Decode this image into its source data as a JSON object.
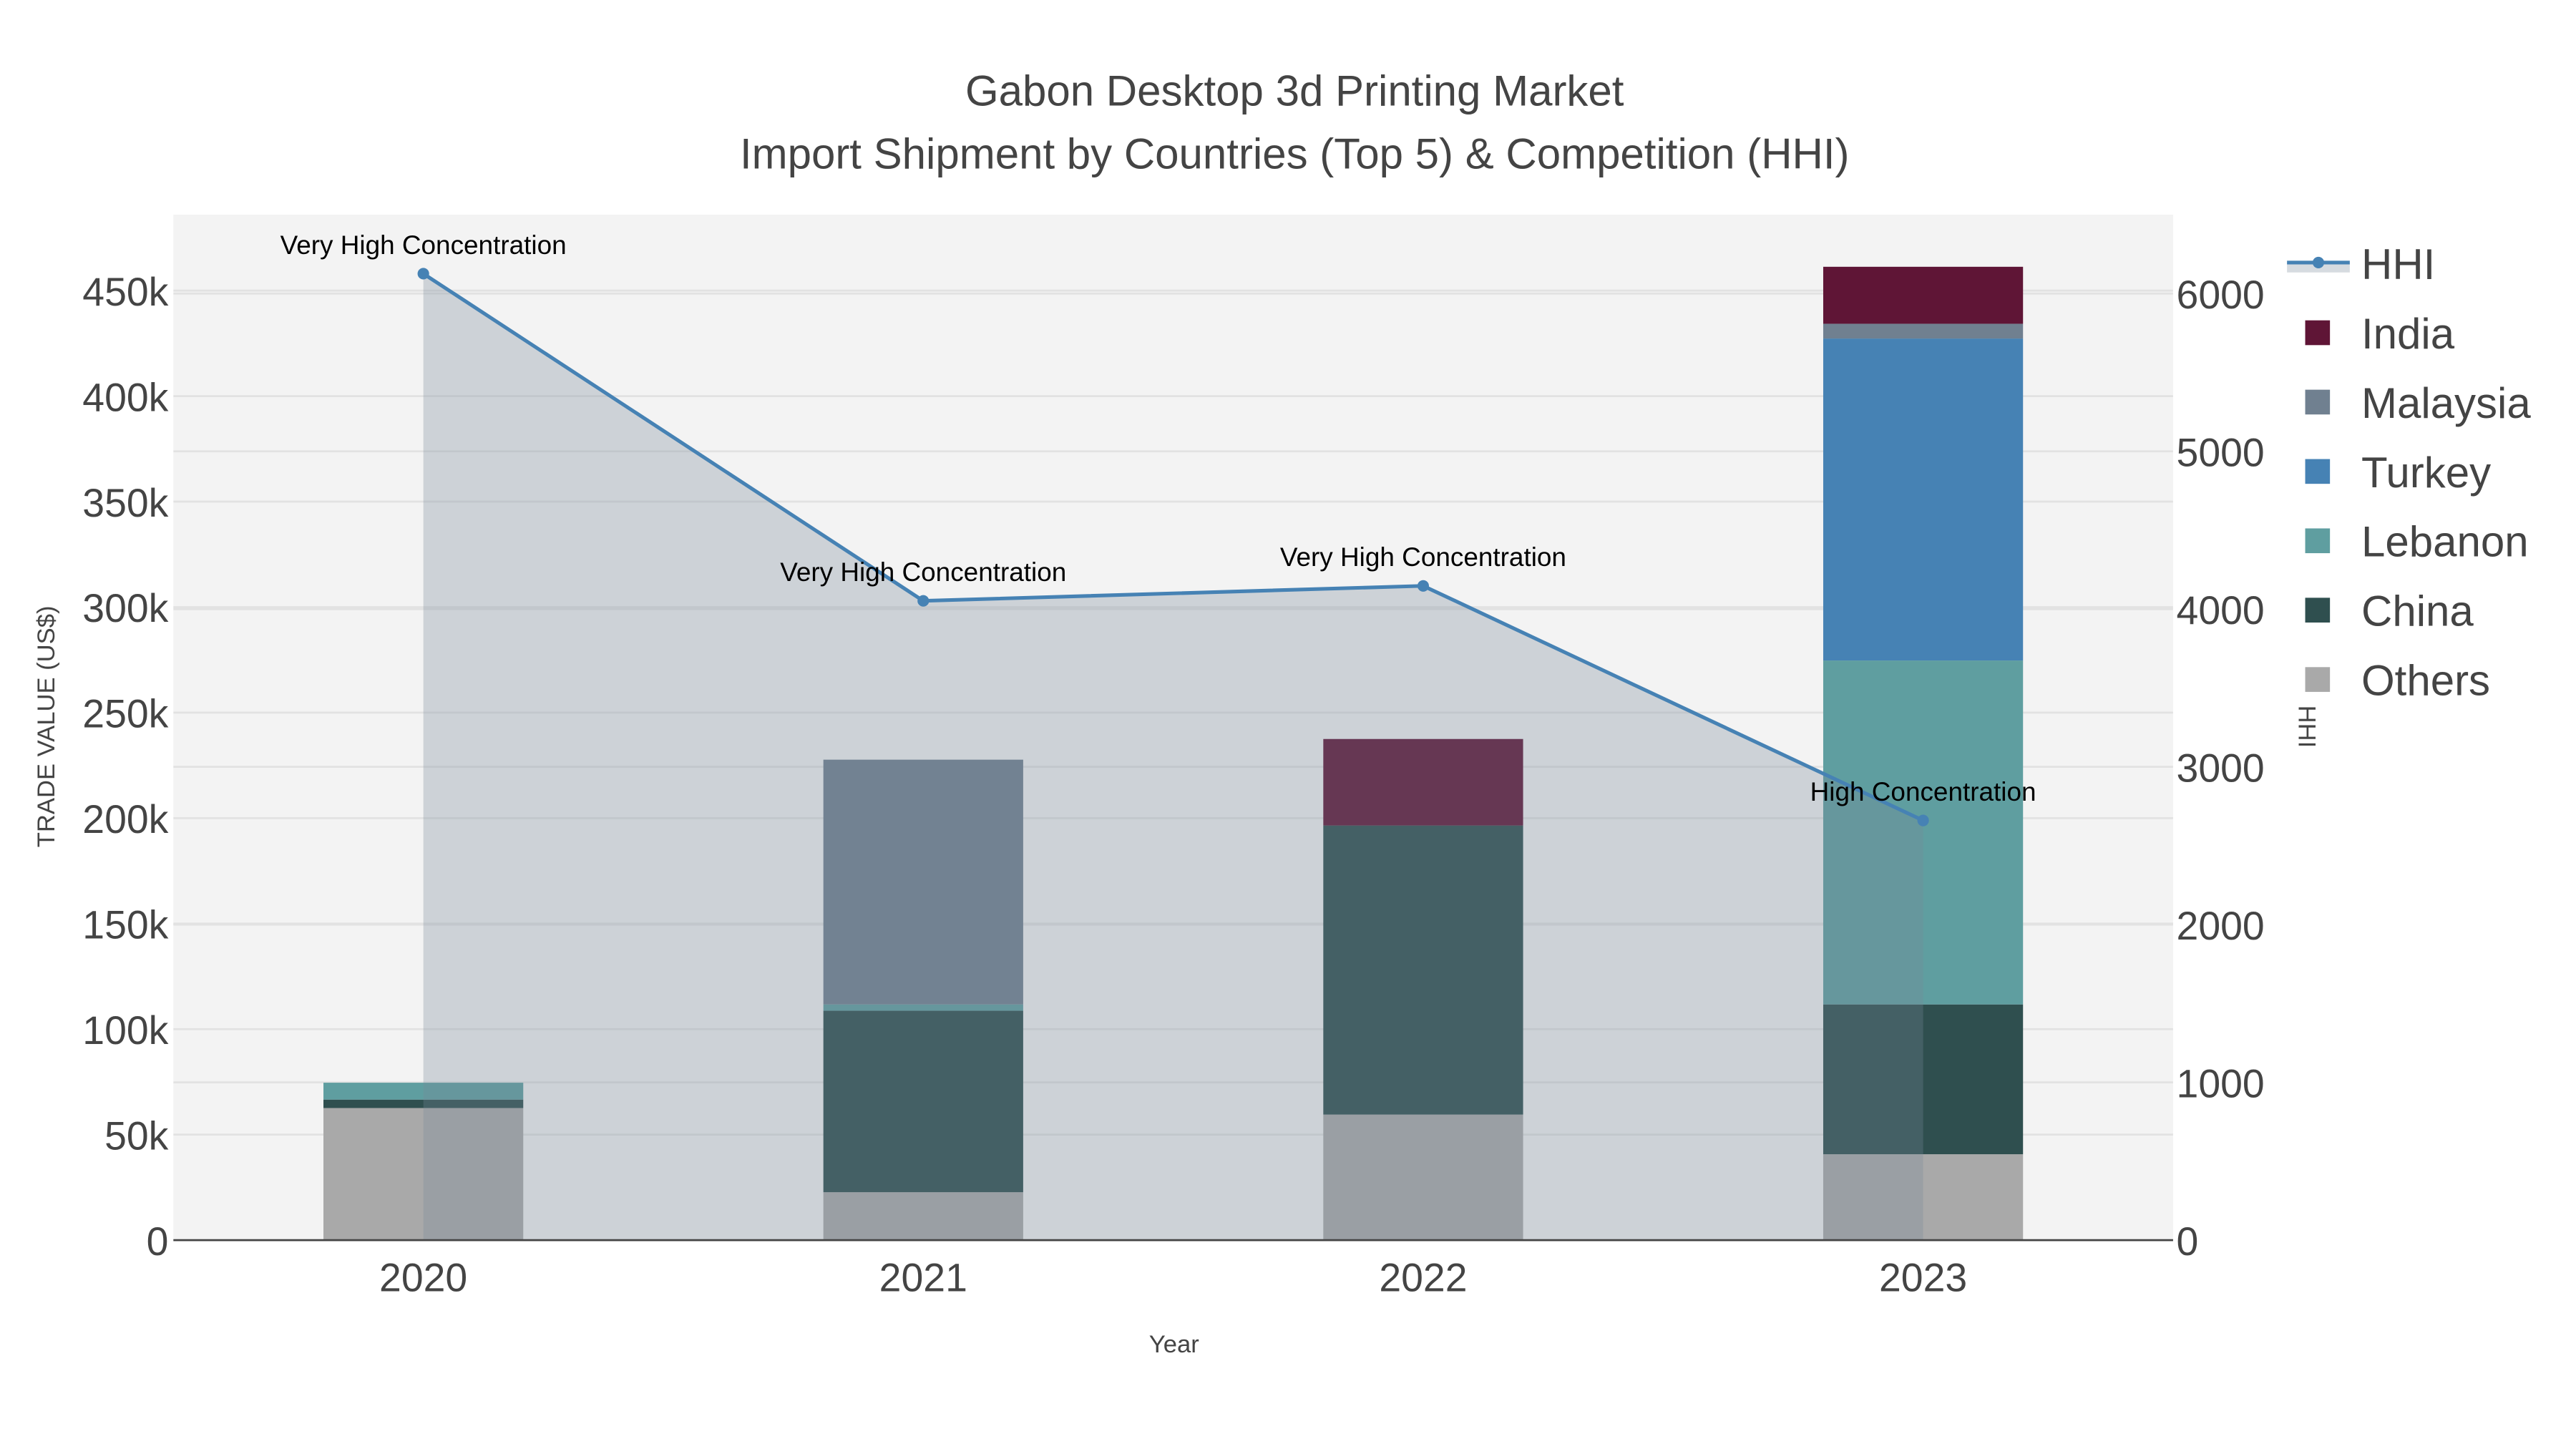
{
  "chart_data": {
    "type": "bar",
    "title": "Gabon Desktop 3d Printing Market",
    "subtitle": "Import Shipment by Countries (Top 5) & Competition (HHI)",
    "xlabel": "Year",
    "ylabel": "TRADE VALUE (US$)",
    "y2label": "HHI",
    "categories": [
      "2020",
      "2021",
      "2022",
      "2023"
    ],
    "ylim": [
      0,
      486000
    ],
    "y2lim": [
      0,
      6500
    ],
    "yticks": [
      0,
      50000,
      100000,
      150000,
      200000,
      250000,
      300000,
      350000,
      400000,
      450000
    ],
    "ytick_labels": [
      "0",
      "50k",
      "100k",
      "150k",
      "200k",
      "250k",
      "300k",
      "350k",
      "400k",
      "450k"
    ],
    "y2ticks": [
      0,
      1000,
      2000,
      3000,
      4000,
      5000,
      6000
    ],
    "y2tick_labels": [
      "0",
      "1000",
      "2000",
      "3000",
      "4000",
      "5000",
      "6000"
    ],
    "grid": true,
    "legend_position": "right",
    "stacked": true,
    "series": [
      {
        "name": "Others",
        "color": "#a9a9a9",
        "values": [
          62600,
          22700,
          59500,
          40700
        ]
      },
      {
        "name": "China",
        "color": "#2f4f4f",
        "values": [
          4000,
          86000,
          137000,
          71000
        ]
      },
      {
        "name": "Lebanon",
        "color": "#5f9ea0",
        "values": [
          8000,
          3000,
          0,
          163000
        ]
      },
      {
        "name": "Turkey",
        "color": "#4682b4",
        "values": [
          0,
          0,
          0,
          152600
        ]
      },
      {
        "name": "Malaysia",
        "color": "#708090",
        "values": [
          0,
          116000,
          0,
          7000
        ]
      },
      {
        "name": "India",
        "color": "#5f1536",
        "values": [
          0,
          0,
          41000,
          27000
        ]
      }
    ],
    "legend_order": [
      "HHI",
      "India",
      "Malaysia",
      "Turkey",
      "Lebanon",
      "China",
      "Others"
    ],
    "hhi": {
      "name": "HHI",
      "color": "#4682b4",
      "values": [
        6126,
        4052,
        4147,
        2660
      ],
      "labels": [
        "Very High Concentration",
        "Very High Concentration",
        "Very High Concentration",
        "High Concentration"
      ]
    }
  }
}
